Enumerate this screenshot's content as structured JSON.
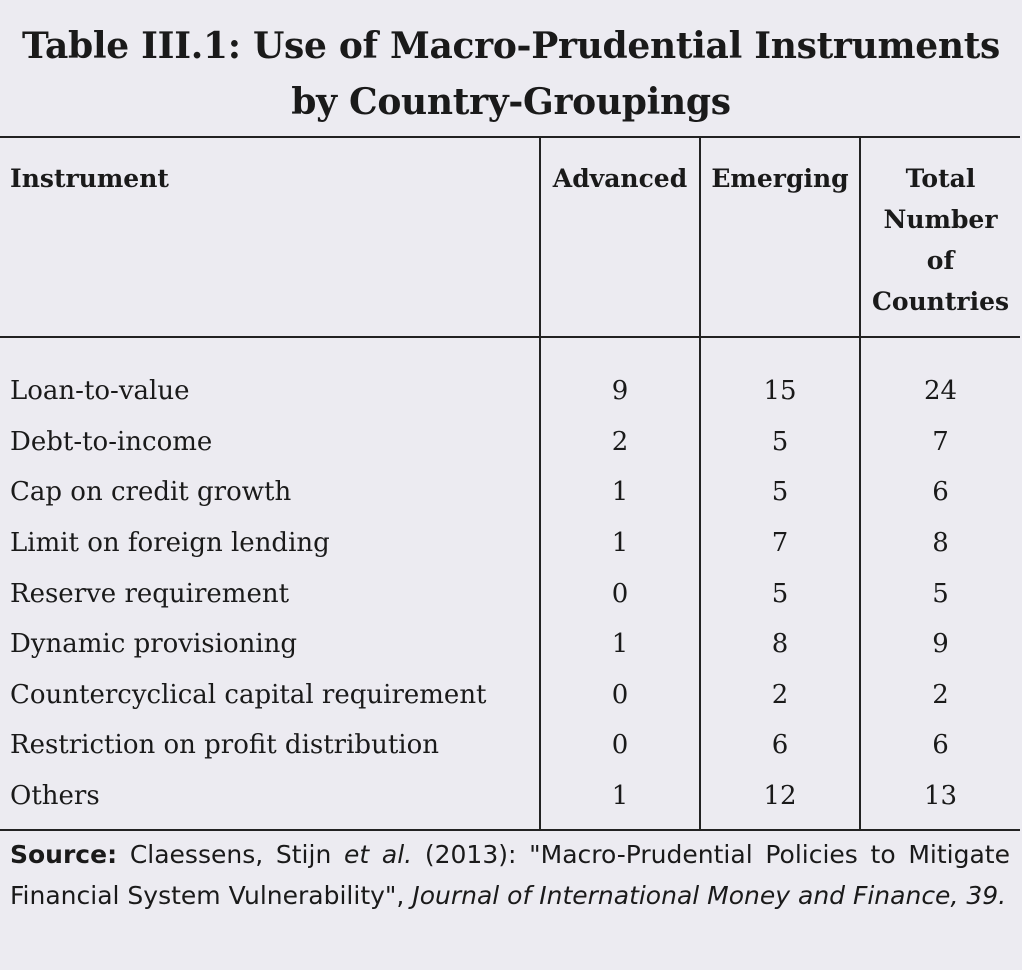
{
  "title": {
    "line1": "Table III.1: Use of Macro-Prudential Instruments",
    "line2": "by Country-Groupings"
  },
  "table": {
    "headers": {
      "instrument": "Instrument",
      "advanced": "Advanced",
      "emerging": "Emerging",
      "total_line1": "Total",
      "total_line2": "Number",
      "total_line3": "of",
      "total_line4": "Countries"
    },
    "rows": [
      {
        "instrument": "Loan-to-value",
        "advanced": "9",
        "emerging": "15",
        "total": "24"
      },
      {
        "instrument": "Debt-to-income",
        "advanced": "2",
        "emerging": "5",
        "total": "7"
      },
      {
        "instrument": "Cap on credit growth",
        "advanced": "1",
        "emerging": "5",
        "total": "6"
      },
      {
        "instrument": "Limit on foreign lending",
        "advanced": "1",
        "emerging": "7",
        "total": "8"
      },
      {
        "instrument": "Reserve requirement",
        "advanced": "0",
        "emerging": "5",
        "total": "5"
      },
      {
        "instrument": "Dynamic provisioning",
        "advanced": "1",
        "emerging": "8",
        "total": "9"
      },
      {
        "instrument": "Countercyclical capital requirement",
        "advanced": "0",
        "emerging": "2",
        "total": "2"
      },
      {
        "instrument": "Restriction on profit distribution",
        "advanced": "0",
        "emerging": "6",
        "total": "6"
      },
      {
        "instrument": "Others",
        "advanced": "1",
        "emerging": "12",
        "total": "13"
      }
    ]
  },
  "source": {
    "label": "Source:",
    "authors": "Claessens, Stijn",
    "etal": "et al.",
    "article": "(2013): \"Macro-Prudential Policies to Mitigate Financial System Vulnerability\",",
    "journal": "Journal of International Money and Finance, 39."
  }
}
